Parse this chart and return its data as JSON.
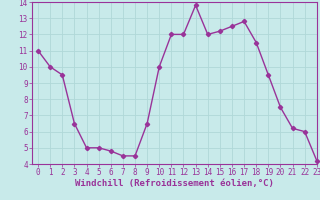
{
  "x": [
    0,
    1,
    2,
    3,
    4,
    5,
    6,
    7,
    8,
    9,
    10,
    11,
    12,
    13,
    14,
    15,
    16,
    17,
    18,
    19,
    20,
    21,
    22,
    23
  ],
  "y": [
    11.0,
    10.0,
    9.5,
    6.5,
    5.0,
    5.0,
    4.8,
    4.5,
    4.5,
    6.5,
    10.0,
    12.0,
    12.0,
    13.8,
    12.0,
    12.2,
    12.5,
    12.8,
    11.5,
    9.5,
    7.5,
    6.2,
    6.0,
    4.2
  ],
  "line_color": "#993399",
  "marker": "D",
  "marker_size": 2.2,
  "line_width": 1.0,
  "background_color": "#c8eaea",
  "grid_color": "#b0d8d8",
  "xlabel": "Windchill (Refroidissement éolien,°C)",
  "xlabel_fontsize": 6.5,
  "ylim": [
    4,
    14
  ],
  "xlim": [
    -0.5,
    23
  ],
  "yticks": [
    4,
    5,
    6,
    7,
    8,
    9,
    10,
    11,
    12,
    13,
    14
  ],
  "xticks": [
    0,
    1,
    2,
    3,
    4,
    5,
    6,
    7,
    8,
    9,
    10,
    11,
    12,
    13,
    14,
    15,
    16,
    17,
    18,
    19,
    20,
    21,
    22,
    23
  ],
  "tick_fontsize": 5.5,
  "axis_label_color": "#993399",
  "tick_color": "#993399",
  "spine_color": "#993399"
}
